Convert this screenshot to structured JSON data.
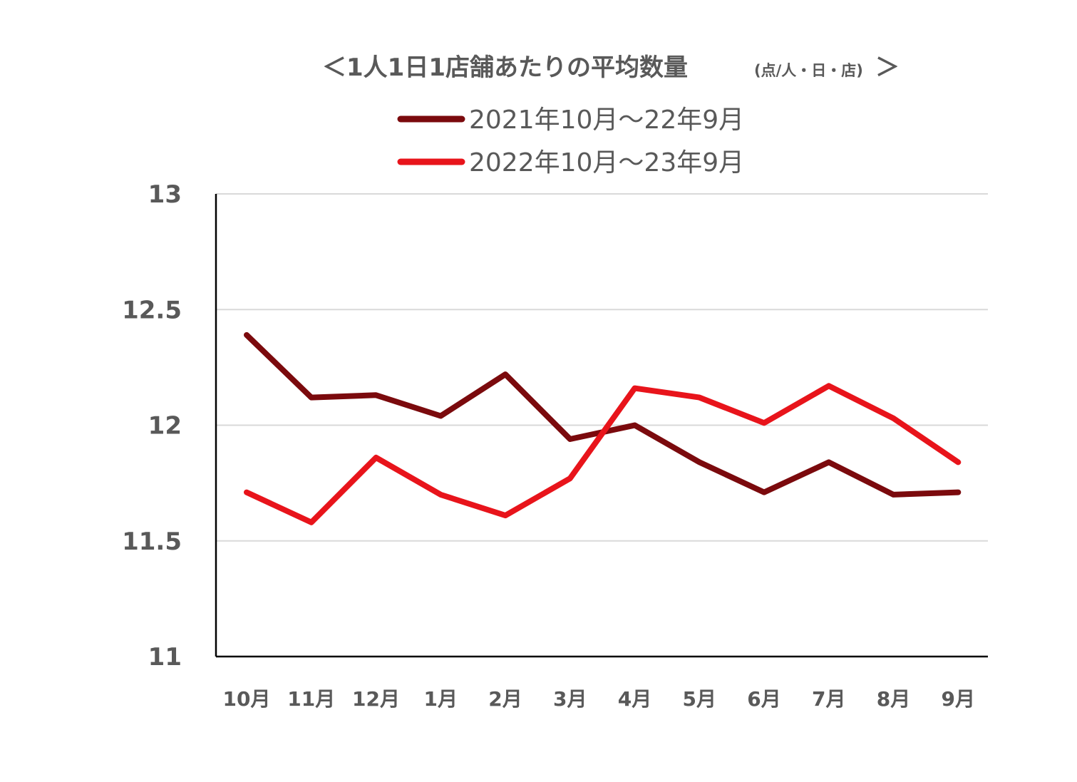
{
  "chart_data": {
    "type": "line",
    "title": "＜1人1日1店舗あたりの平均数量",
    "title_unit": "(点/人・日・店)",
    "title_close": "＞",
    "categories": [
      "10月",
      "11月",
      "12月",
      "1月",
      "2月",
      "3月",
      "4月",
      "5月",
      "6月",
      "7月",
      "8月",
      "9月"
    ],
    "series": [
      {
        "name": "2021年10月～22年9月",
        "color": "#7b0a0d",
        "values": [
          12.39,
          12.12,
          12.13,
          12.04,
          12.22,
          11.94,
          12.0,
          11.84,
          11.71,
          11.84,
          11.7,
          11.71
        ]
      },
      {
        "name": "2022年10月～23年9月",
        "color": "#e8141b",
        "values": [
          11.71,
          11.58,
          11.86,
          11.7,
          11.61,
          11.77,
          12.16,
          12.12,
          12.01,
          12.17,
          12.03,
          11.84
        ]
      }
    ],
    "ylim": [
      11,
      13
    ],
    "yticks": [
      {
        "value": 11,
        "label": "11"
      },
      {
        "value": 11.5,
        "label": "11.5"
      },
      {
        "value": 12,
        "label": "12"
      },
      {
        "value": 12.5,
        "label": "12.5"
      },
      {
        "value": 13,
        "label": "13"
      }
    ],
    "grid": true,
    "legend_position": "top-center"
  }
}
